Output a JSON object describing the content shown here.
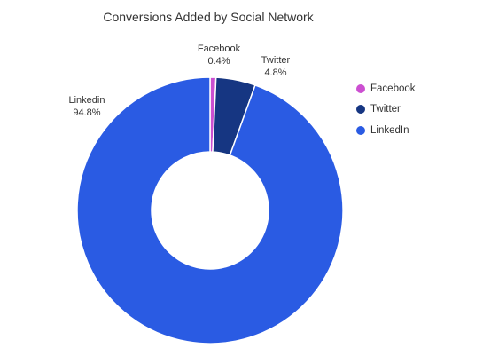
{
  "chart_data": {
    "type": "pie",
    "title": "Conversions Added by Social Network",
    "slices": [
      {
        "legend": "Facebook",
        "label": "Facebook",
        "value_label": "0.4%",
        "value": 0.4,
        "color": "#cc4fd1"
      },
      {
        "legend": "Twitter",
        "label": "Twitter",
        "value_label": "4.8%",
        "value": 4.8,
        "color": "#163682"
      },
      {
        "legend": "LinkedIn",
        "label": "Linkedin",
        "value_label": "94.8%",
        "value": 94.8,
        "color": "#2a5be3"
      }
    ],
    "legend_position": "right",
    "donut": true
  }
}
